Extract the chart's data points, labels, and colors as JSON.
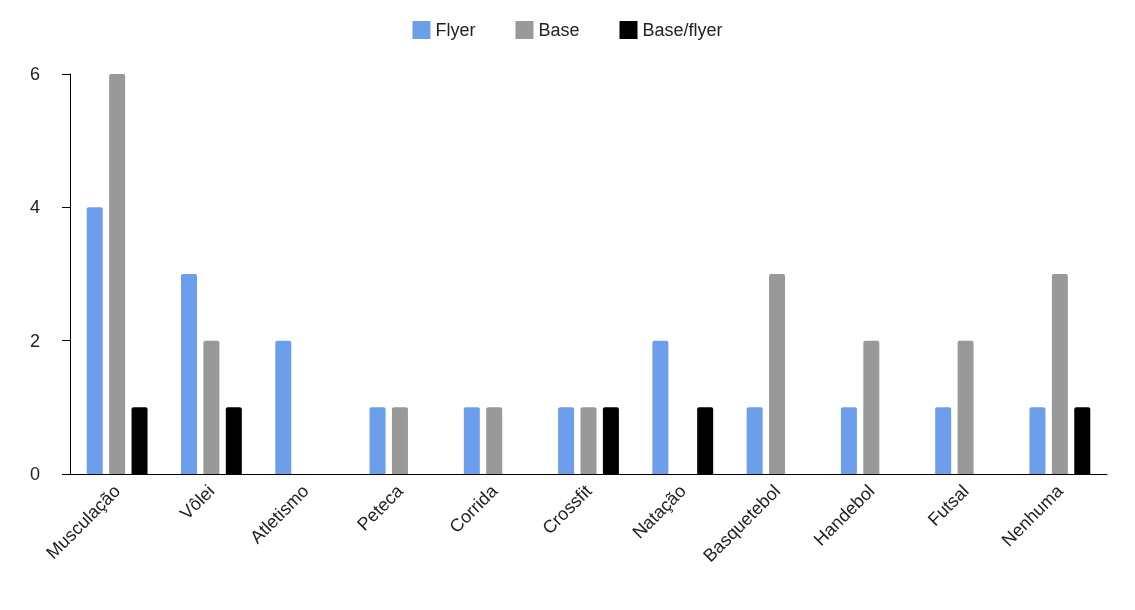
{
  "chart_data": {
    "type": "bar",
    "categories": [
      "Musculação",
      "Vôlei",
      "Atletismo",
      "Peteca",
      "Corrida",
      "Crossfit",
      "Natação",
      "Basquetebol",
      "Handebol",
      "Futsal",
      "Nenhuma"
    ],
    "series": [
      {
        "name": "Flyer",
        "color": "#6d9eeb",
        "values": [
          4,
          3,
          2,
          1,
          1,
          1,
          2,
          1,
          1,
          1,
          1
        ]
      },
      {
        "name": "Base",
        "color": "#999999",
        "values": [
          6,
          2,
          0,
          1,
          1,
          1,
          0,
          3,
          2,
          2,
          3
        ]
      },
      {
        "name": "Base/flyer",
        "color": "#000000",
        "values": [
          1,
          1,
          0,
          0,
          0,
          1,
          1,
          0,
          0,
          0,
          1
        ]
      }
    ],
    "ylim": [
      0,
      6
    ],
    "yticks": [
      0,
      2,
      4,
      6
    ],
    "grid": false,
    "legend": "top"
  }
}
